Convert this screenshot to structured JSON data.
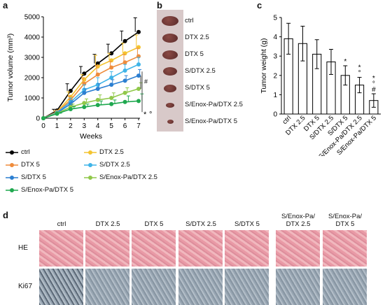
{
  "panels": {
    "a": "a",
    "b": "b",
    "c": "c",
    "d": "d"
  },
  "chart_data": [
    {
      "type": "line",
      "panel": "a",
      "ylabel": "Tumor volume (mm³)",
      "xlabel": "Weeks",
      "xlim": [
        0,
        7
      ],
      "ylim": [
        0,
        5000
      ],
      "xticks": [
        "0",
        "1",
        "2",
        "3",
        "4",
        "5",
        "6",
        "7"
      ],
      "yticks": [
        "0",
        "1000",
        "2000",
        "3000",
        "4000",
        "5000"
      ],
      "x": [
        0,
        1,
        2,
        3,
        4,
        5,
        6,
        7
      ],
      "series": [
        {
          "name": "ctrl",
          "color": "#000000",
          "values": [
            0,
            380,
            1350,
            2200,
            2700,
            3200,
            3800,
            4250
          ],
          "err": [
            0,
            60,
            350,
            350,
            450,
            450,
            500,
            700
          ]
        },
        {
          "name": "DTX 2.5",
          "color": "#f4c430",
          "values": [
            0,
            320,
            1050,
            1900,
            2550,
            2850,
            3200,
            3500
          ],
          "err": [
            0,
            50,
            250,
            250,
            550,
            350,
            500,
            600
          ]
        },
        {
          "name": "DTX 5",
          "color": "#ef8c3c",
          "values": [
            0,
            300,
            900,
            1700,
            2150,
            2500,
            2750,
            3050
          ],
          "err": [
            0,
            50,
            200,
            300,
            450,
            300,
            400,
            400
          ]
        },
        {
          "name": "S/DTX 2.5",
          "color": "#3fb4e8",
          "values": [
            0,
            280,
            800,
            1400,
            1650,
            2000,
            2350,
            2650
          ],
          "err": [
            0,
            40,
            200,
            250,
            350,
            300,
            300,
            350
          ]
        },
        {
          "name": "S/DTX 5",
          "color": "#2c7fd1",
          "values": [
            0,
            260,
            700,
            1250,
            1450,
            1650,
            1850,
            2100
          ],
          "err": [
            0,
            40,
            150,
            200,
            250,
            250,
            250,
            300
          ]
        },
        {
          "name": "S/Enox-Pa/DTX 2.5",
          "color": "#90c84a",
          "values": [
            0,
            240,
            550,
            750,
            900,
            1000,
            1250,
            1450
          ],
          "err": [
            0,
            30,
            150,
            200,
            250,
            250,
            250,
            300
          ]
        },
        {
          "name": "S/Enox-Pa/DTX 5",
          "color": "#1fa84f",
          "values": [
            0,
            220,
            450,
            550,
            650,
            700,
            800,
            850
          ],
          "err": [
            0,
            30,
            120,
            150,
            200,
            200,
            300,
            350
          ]
        }
      ],
      "annotations": [
        "#",
        "*",
        "°"
      ]
    },
    {
      "type": "bar",
      "panel": "c",
      "ylabel": "Tumor weight (g)",
      "ylim": [
        0,
        5
      ],
      "yticks": [
        "0",
        "1",
        "2",
        "3",
        "4",
        "5"
      ],
      "categories": [
        "ctrl",
        "DTX 2.5",
        "DTX 5",
        "S/DTX 2.5",
        "S/DTX 5",
        "S/Enox-Pa/DTX 2.5",
        "S/Enox-Pa/DTX 5"
      ],
      "values": [
        3.9,
        3.65,
        3.1,
        2.7,
        2.0,
        1.5,
        0.7
      ],
      "err": [
        0.8,
        0.9,
        0.75,
        0.65,
        0.5,
        0.4,
        0.35
      ],
      "annotations": [
        "",
        "",
        "",
        "",
        "*",
        "*°",
        "*°#"
      ]
    }
  ],
  "photo_b": {
    "labels": [
      "ctrl",
      "DTX 2.5",
      "DTX 5",
      "S/DTX 2.5",
      "S/DTX 5",
      "S/Enox-Pa/DTX 2.5",
      "S/Enox-Pa/DTX 5"
    ]
  },
  "panel_d": {
    "columns": [
      {
        "label": "ctrl"
      },
      {
        "label": "DTX 2.5"
      },
      {
        "label": "DTX 5"
      },
      {
        "label": "S/DTX 2.5"
      },
      {
        "label": "S/DTX 5"
      },
      {
        "label": "S/Enox-Pa/\nDTX 2.5"
      },
      {
        "label": "S/Enox-Pa/\nDTX 5"
      }
    ],
    "rows": [
      "HE",
      "Ki67"
    ]
  },
  "colors": {
    "he_tissue": "#e7a0a8",
    "ki67_tissue": "#9aa8b4",
    "tumor_dark": "#5a2a2a",
    "photo_bg": "#d8c9c9"
  }
}
